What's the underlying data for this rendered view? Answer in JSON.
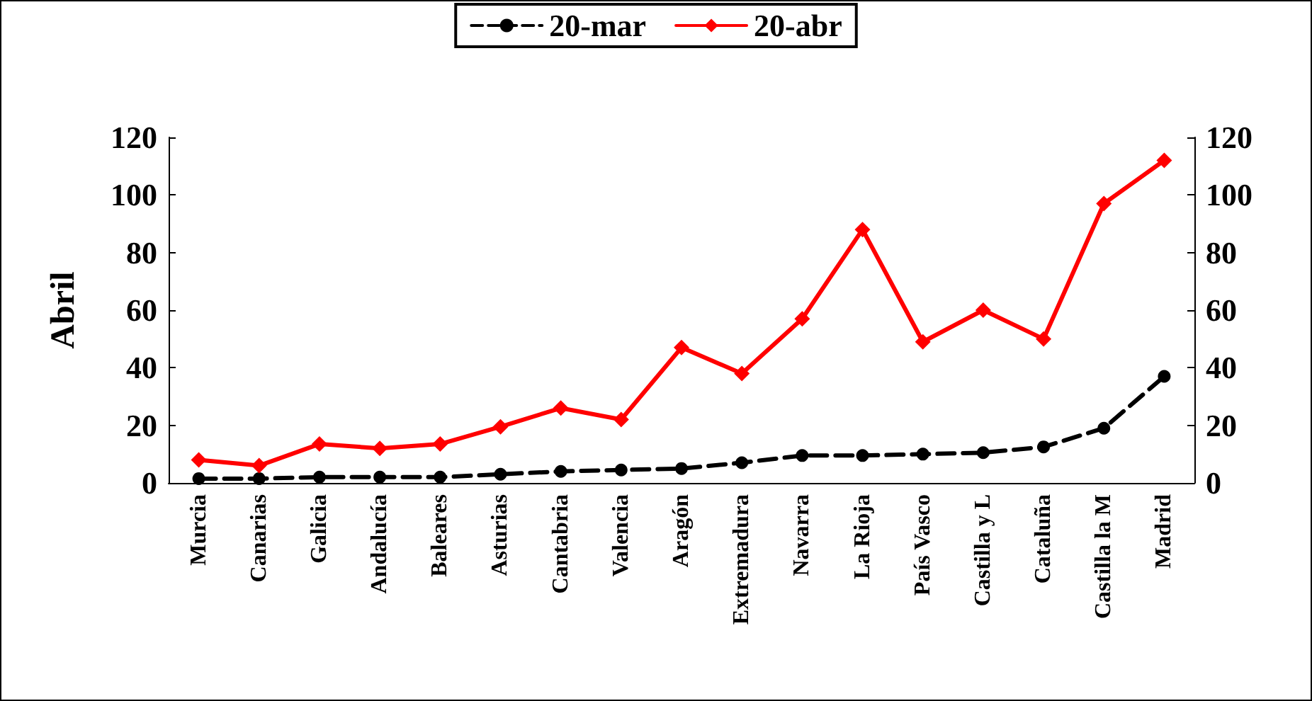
{
  "chart_data": {
    "type": "line",
    "ylabel": "Abril",
    "categories": [
      "Murcia",
      "Canarias",
      "Galicia",
      "Andalucía",
      "Baleares",
      "Asturias",
      "Cantabria",
      "Valencia",
      "Aragón",
      "Extremadura",
      "Navarra",
      "La Rioja",
      "País Vasco",
      "Castilla y L",
      "Cataluña",
      "Castilla la M",
      "Madrid"
    ],
    "series": [
      {
        "name": "20-mar",
        "color": "#000000",
        "marker": "circle",
        "line_style": "dashed",
        "values": [
          1.5,
          1.5,
          2,
          2,
          2,
          3,
          4,
          4.5,
          5,
          7,
          9.5,
          9.5,
          10,
          10.5,
          12.5,
          19,
          37
        ]
      },
      {
        "name": "20-abr",
        "color": "#ff0000",
        "marker": "diamond",
        "line_style": "solid",
        "values": [
          8,
          6,
          13.5,
          12,
          13.5,
          19.5,
          26,
          22,
          47,
          38,
          57,
          88,
          49,
          60,
          50,
          97,
          112
        ]
      }
    ],
    "ylim": [
      0,
      120
    ],
    "yticks": [
      0,
      20,
      40,
      60,
      80,
      100,
      120
    ],
    "y2lim": [
      0,
      120
    ],
    "y2ticks": [
      0,
      20,
      40,
      60,
      80,
      100,
      120
    ],
    "grid": false,
    "legend": "top"
  }
}
